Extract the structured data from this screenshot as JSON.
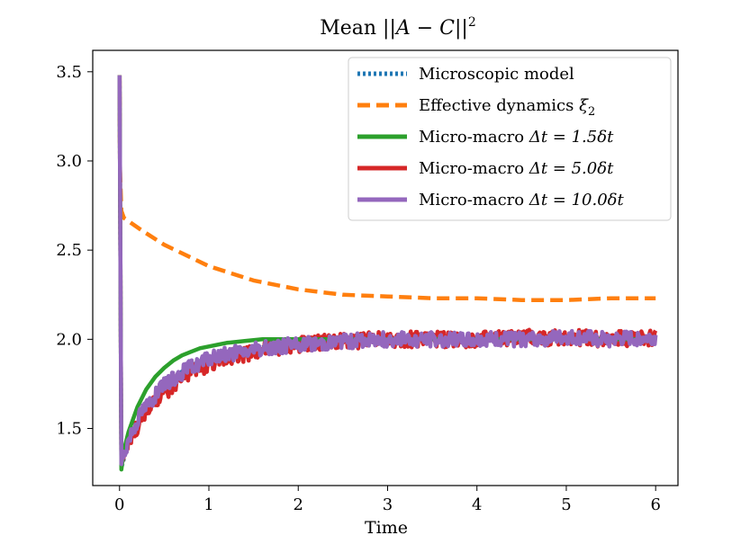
{
  "chart_data": {
    "type": "line",
    "title": "Mean ||A − C||²",
    "title_parts": {
      "prefix": "Mean ",
      "expr": "||A − C||",
      "sup": "2"
    },
    "xlabel": "Time",
    "ylabel": "",
    "xlim": [
      -0.3,
      6.25
    ],
    "ylim": [
      1.18,
      3.62
    ],
    "xticks": [
      0,
      1,
      2,
      3,
      4,
      5,
      6
    ],
    "xtick_labels": [
      "0",
      "1",
      "2",
      "3",
      "4",
      "5",
      "6"
    ],
    "yticks": [
      1.5,
      2.0,
      2.5,
      3.0,
      3.5
    ],
    "ytick_labels": [
      "1.5",
      "2.0",
      "2.5",
      "3.0",
      "3.5"
    ],
    "grid": false,
    "legend_position": "top-right",
    "series": [
      {
        "name": "Microscopic model",
        "label_parts": {
          "text": "Microscopic model"
        },
        "color": "#1f77b4",
        "style": "dotted",
        "x": [
          0,
          0.02,
          0.1,
          0.25,
          0.5,
          0.75,
          1.0,
          1.25,
          1.5,
          2.0,
          2.5,
          3.0,
          3.5,
          4.0,
          4.5,
          5.0,
          5.5,
          6.0
        ],
        "y": [
          3.48,
          1.28,
          1.42,
          1.58,
          1.74,
          1.84,
          1.9,
          1.93,
          1.95,
          1.98,
          1.99,
          2.0,
          2.0,
          2.0,
          2.01,
          2.01,
          2.0,
          2.0
        ]
      },
      {
        "name": "Effective dynamics ξ2",
        "label_parts": {
          "text": "Effective dynamics ",
          "math": "ξ",
          "sub": "2"
        },
        "color": "#ff7f0e",
        "style": "dashed",
        "x": [
          0,
          0.005,
          0.02,
          0.05,
          0.25,
          0.5,
          1.0,
          1.5,
          2.0,
          2.5,
          3.0,
          3.5,
          4.0,
          4.5,
          5.0,
          5.5,
          6.0
        ],
        "y": [
          3.48,
          2.95,
          2.72,
          2.68,
          2.61,
          2.53,
          2.41,
          2.33,
          2.28,
          2.25,
          2.24,
          2.23,
          2.23,
          2.22,
          2.22,
          2.23,
          2.23
        ]
      },
      {
        "name": "Micro-macro Δt = 1.5δt",
        "label_parts": {
          "text": "Micro-macro ",
          "math": "Δt = 1.5δt"
        },
        "color": "#2ca02c",
        "style": "solid",
        "x": [
          0,
          0.02,
          0.05,
          0.1,
          0.2,
          0.3,
          0.4,
          0.5,
          0.6,
          0.7,
          0.8,
          0.9,
          1.0,
          1.2,
          1.4,
          1.6,
          1.8,
          2.0,
          6.0
        ],
        "y": [
          3.48,
          1.27,
          1.38,
          1.48,
          1.62,
          1.72,
          1.79,
          1.84,
          1.88,
          1.91,
          1.93,
          1.95,
          1.96,
          1.98,
          1.99,
          2.0,
          2.0,
          2.0,
          2.0
        ]
      },
      {
        "name": "Micro-macro Δt = 5.0δt",
        "label_parts": {
          "text": "Micro-macro ",
          "math": "Δt = 5.0δt"
        },
        "color": "#d62728",
        "style": "solid",
        "x": [
          0,
          0.02,
          0.1,
          0.25,
          0.5,
          0.75,
          1.0,
          1.25,
          1.5,
          1.75,
          2.0,
          2.5,
          3.0,
          3.5,
          4.0,
          4.5,
          5.0,
          5.5,
          6.0
        ],
        "y": [
          3.48,
          1.3,
          1.42,
          1.56,
          1.7,
          1.8,
          1.86,
          1.9,
          1.93,
          1.95,
          1.97,
          1.99,
          2.0,
          2.0,
          2.0,
          2.01,
          2.01,
          2.0,
          2.01
        ]
      },
      {
        "name": "Micro-macro Δt = 10.0δt",
        "label_parts": {
          "text": "Micro-macro ",
          "math": "Δt = 10.0δt"
        },
        "color": "#9467bd",
        "style": "solid",
        "x": [
          0,
          0.02,
          0.1,
          0.25,
          0.5,
          0.75,
          1.0,
          1.25,
          1.5,
          1.75,
          2.0,
          2.5,
          3.0,
          3.5,
          4.0,
          4.5,
          5.0,
          5.5,
          6.0
        ],
        "y": [
          3.48,
          1.3,
          1.44,
          1.6,
          1.74,
          1.83,
          1.89,
          1.92,
          1.94,
          1.96,
          1.97,
          1.99,
          2.0,
          2.0,
          2.0,
          2.0,
          2.01,
          2.0,
          2.01
        ]
      }
    ]
  }
}
